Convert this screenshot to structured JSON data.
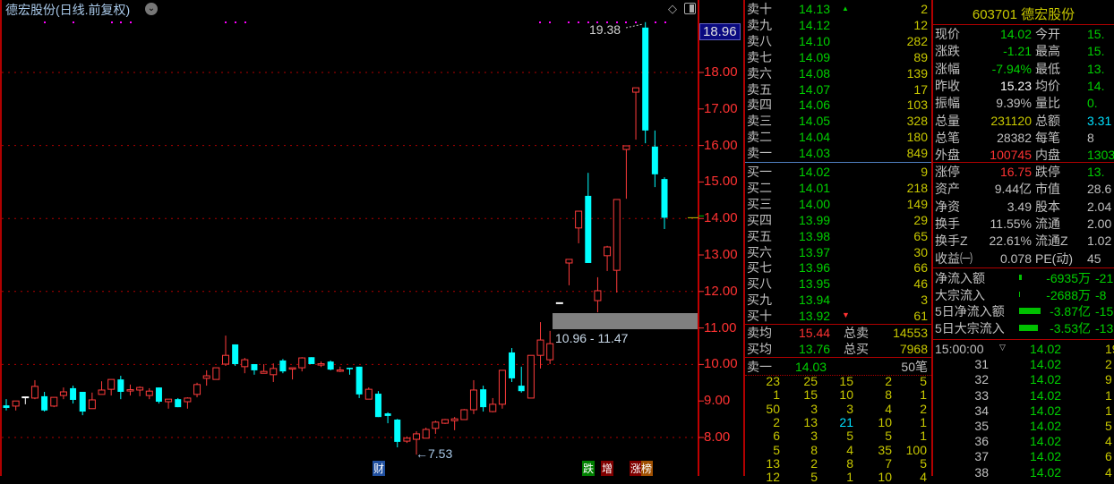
{
  "chart": {
    "title": "德宏股份(日线.前复权)",
    "current_price_tag": "18.96",
    "axis_labels": [
      "18.00",
      "17.00",
      "16.00",
      "15.00",
      "14.00",
      "13.00",
      "12.00",
      "11.00",
      "10.00",
      "9.00",
      "8.00"
    ],
    "high_annotation": "19.38",
    "low_annotation": "←7.53",
    "range_label": "10.96 - 11.47",
    "markers": {
      "cai": "财",
      "die": "跌",
      "zeng": "增",
      "zhangbang": "涨榜"
    },
    "colors": {
      "up": "#ff3c3c",
      "down": "#00ffff",
      "flat": "#ffffff",
      "grid": "#b00000"
    },
    "candles": [
      [
        8.88,
        9.05,
        8.74,
        8.81
      ],
      [
        8.86,
        9.0,
        8.74,
        9.0
      ],
      [
        9.1,
        9.1,
        8.91,
        9.1
      ],
      [
        9.08,
        9.57,
        9.05,
        9.4
      ],
      [
        9.13,
        9.25,
        8.71,
        8.74
      ],
      [
        8.86,
        9.1,
        8.83,
        9.1
      ],
      [
        9.15,
        9.37,
        9.05,
        9.25
      ],
      [
        9.35,
        9.42,
        8.93,
        9.03
      ],
      [
        9.25,
        9.25,
        8.61,
        8.71
      ],
      [
        8.79,
        9.23,
        8.79,
        9.03
      ],
      [
        9.18,
        9.54,
        9.18,
        9.3
      ],
      [
        9.32,
        9.59,
        9.15,
        9.59
      ],
      [
        9.59,
        9.69,
        9.05,
        9.25
      ],
      [
        9.29,
        9.45,
        9.15,
        9.31
      ],
      [
        9.3,
        9.4,
        9.13,
        9.37
      ],
      [
        9.15,
        9.35,
        9.05,
        9.27
      ],
      [
        9.37,
        9.37,
        8.93,
        8.98
      ],
      [
        8.98,
        9.05,
        8.79,
        9.05
      ],
      [
        9.05,
        9.08,
        8.83,
        8.83
      ],
      [
        8.98,
        9.1,
        8.79,
        9.08
      ],
      [
        9.18,
        9.5,
        9.1,
        9.45
      ],
      [
        9.62,
        9.84,
        9.42,
        9.69
      ],
      [
        9.59,
        9.91,
        9.59,
        9.91
      ],
      [
        10.01,
        10.79,
        9.96,
        10.25
      ],
      [
        10.55,
        10.55,
        9.96,
        10.01
      ],
      [
        9.94,
        10.18,
        9.76,
        10.13
      ],
      [
        10.01,
        10.01,
        9.72,
        9.84
      ],
      [
        9.76,
        10.01,
        9.76,
        9.81
      ],
      [
        9.72,
        10.03,
        9.52,
        9.89
      ],
      [
        10.11,
        10.15,
        9.76,
        9.81
      ],
      [
        9.89,
        9.91,
        9.59,
        9.91
      ],
      [
        9.91,
        10.2,
        9.81,
        10.18
      ],
      [
        10.2,
        10.2,
        10.01,
        10.01
      ],
      [
        10.0,
        10.08,
        9.93,
        10.02
      ],
      [
        10.08,
        10.11,
        9.84,
        9.86
      ],
      [
        9.83,
        9.94,
        9.79,
        9.85
      ],
      [
        9.91,
        9.91,
        9.72,
        9.87
      ],
      [
        9.94,
        9.94,
        9.08,
        9.18
      ],
      [
        9.05,
        9.37,
        9.05,
        9.32
      ],
      [
        9.2,
        9.27,
        8.56,
        8.56
      ],
      [
        8.66,
        8.69,
        8.39,
        8.59
      ],
      [
        8.49,
        8.51,
        7.73,
        7.88
      ],
      [
        7.9,
        8.03,
        7.85,
        7.98
      ],
      [
        7.95,
        8.17,
        7.53,
        8.1
      ],
      [
        7.98,
        8.27,
        7.98,
        8.22
      ],
      [
        8.25,
        8.46,
        8.1,
        8.42
      ],
      [
        8.39,
        8.51,
        8.37,
        8.49
      ],
      [
        8.46,
        8.56,
        8.2,
        8.51
      ],
      [
        8.49,
        8.78,
        8.49,
        8.76
      ],
      [
        8.76,
        9.57,
        8.64,
        9.3
      ],
      [
        9.32,
        9.42,
        8.71,
        8.83
      ],
      [
        8.71,
        9.08,
        8.69,
        8.91
      ],
      [
        8.91,
        9.84,
        8.79,
        9.84
      ],
      [
        10.33,
        10.45,
        9.52,
        9.62
      ],
      [
        9.42,
        9.94,
        9.23,
        9.27
      ],
      [
        9.08,
        10.25,
        9.08,
        10.25
      ],
      [
        10.25,
        11.16,
        9.89,
        10.67
      ],
      [
        10.13,
        10.92,
        10.01,
        10.57
      ],
      [
        11.68,
        11.68,
        11.68,
        11.68
      ],
      [
        12.78,
        12.88,
        12.17,
        12.88
      ],
      [
        13.74,
        14.2,
        13.32,
        14.2
      ],
      [
        14.62,
        15.25,
        12.78,
        12.78
      ],
      [
        11.75,
        12.39,
        11.43,
        12.02
      ],
      [
        12.98,
        13.25,
        12.56,
        13.22
      ],
      [
        12.58,
        14.52,
        11.97,
        14.52
      ],
      [
        15.89,
        15.99,
        14.54,
        15.99
      ],
      [
        17.46,
        17.58,
        16.16,
        17.58
      ],
      [
        19.23,
        19.38,
        16.06,
        16.41
      ],
      [
        15.97,
        16.41,
        14.86,
        15.21
      ],
      [
        15.08,
        15.13,
        13.71,
        14.02
      ]
    ]
  },
  "orderbook": {
    "asks": [
      {
        "l": "卖十",
        "p": "14.13",
        "v": "2"
      },
      {
        "l": "卖九",
        "p": "14.12",
        "v": "12"
      },
      {
        "l": "卖八",
        "p": "14.10",
        "v": "282"
      },
      {
        "l": "卖七",
        "p": "14.09",
        "v": "89"
      },
      {
        "l": "卖六",
        "p": "14.08",
        "v": "139"
      },
      {
        "l": "卖五",
        "p": "14.07",
        "v": "17"
      },
      {
        "l": "卖四",
        "p": "14.06",
        "v": "103"
      },
      {
        "l": "卖三",
        "p": "14.05",
        "v": "328"
      },
      {
        "l": "卖二",
        "p": "14.04",
        "v": "180"
      },
      {
        "l": "卖一",
        "p": "14.03",
        "v": "849"
      }
    ],
    "bids": [
      {
        "l": "买一",
        "p": "14.02",
        "v": "9"
      },
      {
        "l": "买二",
        "p": "14.01",
        "v": "218"
      },
      {
        "l": "买三",
        "p": "14.00",
        "v": "149"
      },
      {
        "l": "买四",
        "p": "13.99",
        "v": "29"
      },
      {
        "l": "买五",
        "p": "13.98",
        "v": "65"
      },
      {
        "l": "买六",
        "p": "13.97",
        "v": "30"
      },
      {
        "l": "买七",
        "p": "13.96",
        "v": "66"
      },
      {
        "l": "买八",
        "p": "13.95",
        "v": "46"
      },
      {
        "l": "买九",
        "p": "13.94",
        "v": "3"
      },
      {
        "l": "买十",
        "p": "13.92",
        "v": "61"
      }
    ],
    "sell_avg_label": "卖均",
    "sell_avg": "15.44",
    "total_sell_label": "总卖",
    "total_sell": "14553",
    "buy_avg_label": "买均",
    "buy_avg": "13.76",
    "total_buy_label": "总买",
    "total_buy": "7968",
    "queue_label": "卖一",
    "queue_price": "14.03",
    "queue_count": "50笔",
    "queue": [
      [
        "23",
        "25",
        "15",
        "2",
        "5"
      ],
      [
        "1",
        "15",
        "10",
        "8",
        "1"
      ],
      [
        "50",
        "3",
        "3",
        "4",
        "2"
      ],
      [
        "2",
        "13",
        "21",
        "10",
        "1"
      ],
      [
        "6",
        "3",
        "5",
        "5",
        "1"
      ],
      [
        "5",
        "8",
        "4",
        "35",
        "100"
      ],
      [
        "13",
        "2",
        "8",
        "7",
        "5"
      ],
      [
        "12",
        "5",
        "1",
        "10",
        "4"
      ]
    ]
  },
  "quote": {
    "header": "603701 德宏股份",
    "rows1": [
      [
        "现价",
        "14.02",
        "g",
        "今开",
        "15.",
        "g"
      ],
      [
        "涨跌",
        "-1.21",
        "g",
        "最高",
        "15.",
        "g"
      ],
      [
        "涨幅",
        "-7.94%",
        "g",
        "最低",
        "13.",
        "g"
      ],
      [
        "昨收",
        "15.23",
        "w",
        "均价",
        "14.",
        "g"
      ],
      [
        "振幅",
        "9.39%",
        "l",
        "量比",
        "0.",
        "g"
      ],
      [
        "总量",
        "231120",
        "y",
        "总额",
        "3.31",
        "c"
      ],
      [
        "总笔",
        "28382",
        "l",
        "每笔",
        "8",
        "l"
      ],
      [
        "外盘",
        "100745",
        "r",
        "内盘",
        "1303",
        "g"
      ]
    ],
    "rows2": [
      [
        "涨停",
        "16.75",
        "r",
        "跌停",
        "13.",
        "g"
      ],
      [
        "资产",
        "9.44亿",
        "l",
        "市值",
        "28.6",
        "l"
      ],
      [
        "净资",
        "3.49",
        "l",
        "股本",
        "2.04",
        "l"
      ],
      [
        "换手",
        "11.55%",
        "l",
        "流通",
        "2.00",
        "l"
      ],
      [
        "换手Z",
        "22.61%",
        "l",
        "流通Z",
        "1.02",
        "l"
      ],
      [
        "收益㈠",
        "0.078",
        "l",
        "PE(动)",
        "45",
        "l"
      ]
    ],
    "flows": [
      {
        "l": "净流入额",
        "v": "-6935万",
        "p": "-21"
      },
      {
        "l": "大宗流入",
        "v": "-2688万",
        "p": "-8"
      },
      {
        "l": "5日净流入额",
        "v": "-3.87亿",
        "p": "-15"
      },
      {
        "l": "5日大宗流入",
        "v": "-3.53亿",
        "p": "-13"
      }
    ],
    "ticks": [
      [
        "15:00:00",
        "14.02",
        "19"
      ],
      [
        "31",
        "14.02",
        "2"
      ],
      [
        "32",
        "14.02",
        "9"
      ],
      [
        "33",
        "14.02",
        "1"
      ],
      [
        "34",
        "14.02",
        "1"
      ],
      [
        "35",
        "14.02",
        "5"
      ],
      [
        "36",
        "14.02",
        "4"
      ],
      [
        "37",
        "14.02",
        "6"
      ],
      [
        "38",
        "14.02",
        "4"
      ]
    ]
  }
}
